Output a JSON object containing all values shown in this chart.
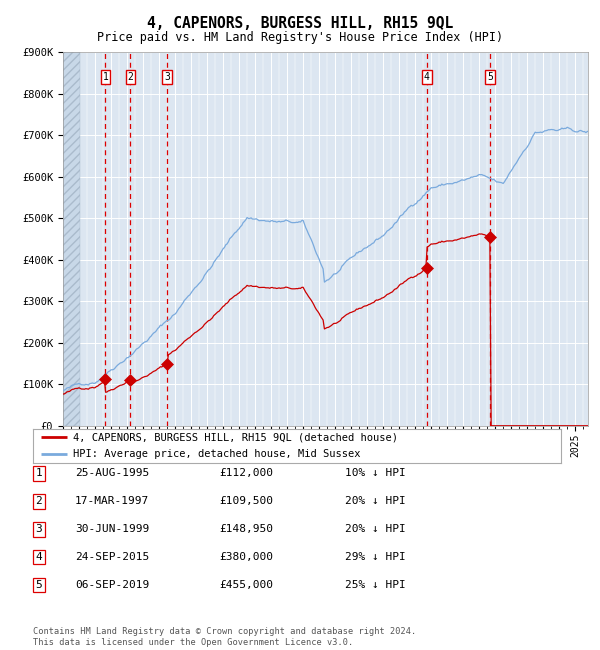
{
  "title": "4, CAPENORS, BURGESS HILL, RH15 9QL",
  "subtitle": "Price paid vs. HM Land Registry's House Price Index (HPI)",
  "legend_line1": "4, CAPENORS, BURGESS HILL, RH15 9QL (detached house)",
  "legend_line2": "HPI: Average price, detached house, Mid Sussex",
  "sale_dates_decimal": [
    1995.65,
    1997.21,
    1999.5,
    2015.73,
    2019.68
  ],
  "sale_prices": [
    112000,
    109500,
    148950,
    380000,
    455000
  ],
  "sale_labels": [
    "1",
    "2",
    "3",
    "4",
    "5"
  ],
  "table_rows": [
    {
      "num": "1",
      "date": "25-AUG-1995",
      "price": "£112,000",
      "hpi": "10% ↓ HPI"
    },
    {
      "num": "2",
      "date": "17-MAR-1997",
      "price": "£109,500",
      "hpi": "20% ↓ HPI"
    },
    {
      "num": "3",
      "date": "30-JUN-1999",
      "price": "£148,950",
      "hpi": "20% ↓ HPI"
    },
    {
      "num": "4",
      "date": "24-SEP-2015",
      "price": "£380,000",
      "hpi": "29% ↓ HPI"
    },
    {
      "num": "5",
      "date": "06-SEP-2019",
      "price": "£455,000",
      "hpi": "25% ↓ HPI"
    }
  ],
  "footer": "Contains HM Land Registry data © Crown copyright and database right 2024.\nThis data is licensed under the Open Government Licence v3.0.",
  "hpi_color": "#7aaadd",
  "price_color": "#cc0000",
  "marker_color": "#cc0000",
  "dashed_line_color": "#dd0000",
  "background_color": "#dce6f1",
  "ylim": [
    0,
    900000
  ],
  "xlim_start": 1993.0,
  "xlim_end": 2025.8,
  "yticks": [
    0,
    100000,
    200000,
    300000,
    400000,
    500000,
    600000,
    700000,
    800000,
    900000
  ],
  "ytick_labels": [
    "£0",
    "£100K",
    "£200K",
    "£300K",
    "£400K",
    "£500K",
    "£600K",
    "£700K",
    "£800K",
    "£900K"
  ]
}
